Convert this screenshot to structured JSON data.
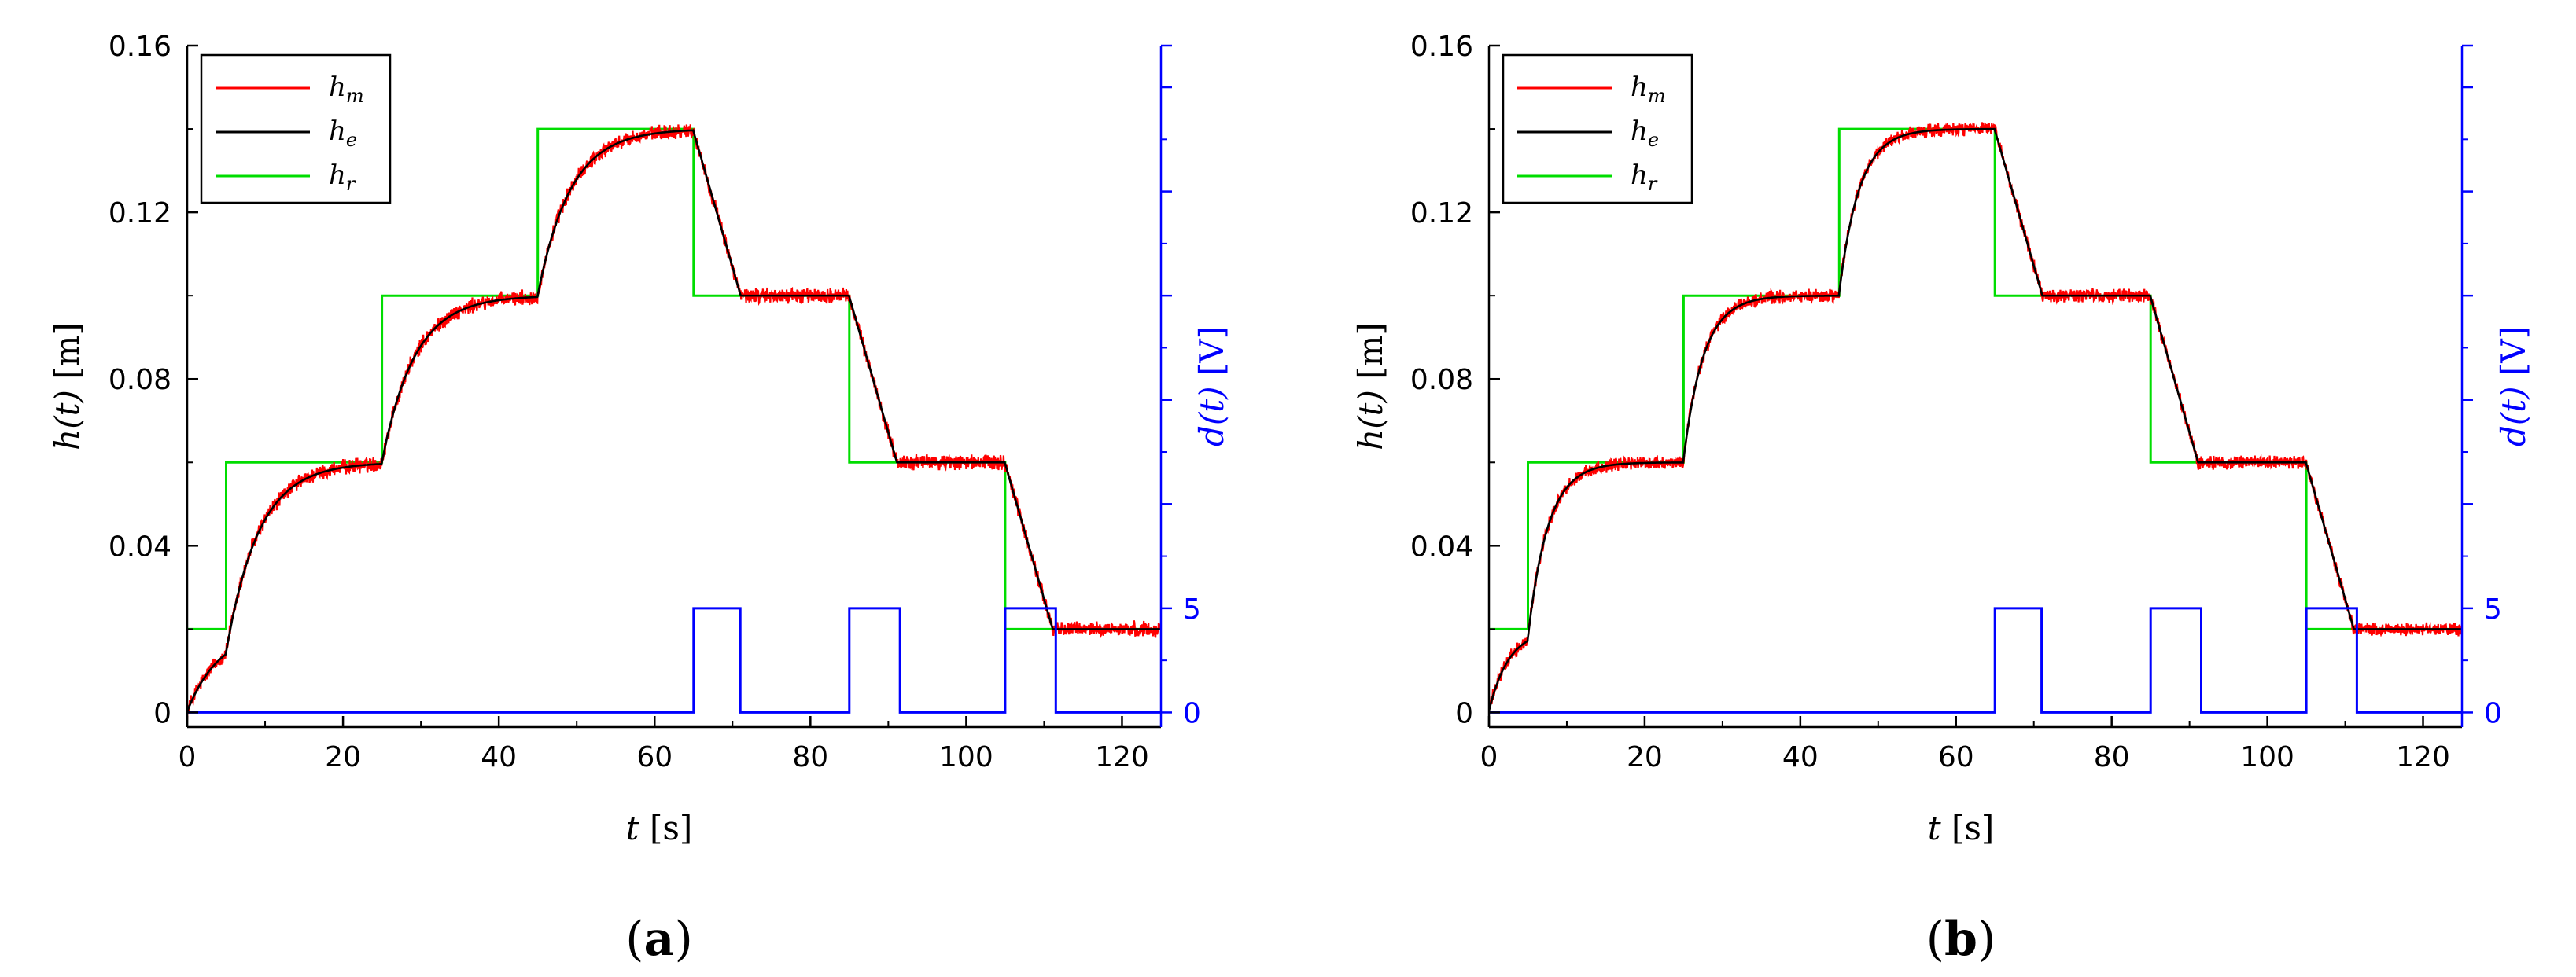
{
  "chart_data": [
    {
      "type": "line",
      "panel_label": "(a)",
      "xlabel": "t [s]",
      "ylabel": "h(t) [m]",
      "ylabel_right": "d(t) [V]",
      "xlim": [
        0,
        125
      ],
      "ylim": [
        -0.0035,
        0.16
      ],
      "ylim_right": [
        -0.7,
        32
      ],
      "xticks": [
        0,
        20,
        40,
        60,
        80,
        100,
        120
      ],
      "xtick_labels": [
        "0",
        "20",
        "40",
        "60",
        "80",
        "100",
        "120"
      ],
      "yticks": [
        0,
        0.04,
        0.08,
        0.12,
        0.16
      ],
      "ytick_labels": [
        "0",
        "0.04",
        "0.08",
        "0.12",
        "0.16"
      ],
      "yticks_right_labeled": [
        0,
        5
      ],
      "ytick_labels_right": [
        "0",
        "5"
      ],
      "yticks_right_minor": [
        10,
        15,
        20,
        25,
        30
      ],
      "legend": [
        "h_m",
        "h_e",
        "h_r"
      ],
      "legend_position": "top-left",
      "colors": {
        "h_m": "#ff0000",
        "h_e": "#000000",
        "h_r": "#00dd00",
        "d": "#0000ff"
      },
      "series": [
        {
          "name": "h_r",
          "kind": "step",
          "x": [
            0,
            5,
            25,
            45,
            65,
            85,
            105,
            125
          ],
          "values": [
            0.02,
            0.06,
            0.1,
            0.14,
            0.1,
            0.06,
            0.02,
            0.02
          ]
        },
        {
          "name": "h_e",
          "kind": "model",
          "rise_tau": 4.2,
          "fall_rate": 0.0065,
          "start": 0.0
        },
        {
          "name": "h_m",
          "kind": "noisy",
          "noise_amplitude": 0.0015
        },
        {
          "name": "d",
          "kind": "step",
          "x": [
            0,
            65,
            71,
            85,
            91.5,
            105,
            111.5,
            125
          ],
          "values": [
            0,
            5,
            0,
            5,
            0,
            5,
            0,
            0
          ]
        }
      ]
    },
    {
      "type": "line",
      "panel_label": "(b)",
      "xlabel": "t [s]",
      "ylabel": "h(t) [m]",
      "ylabel_right": "d(t) [V]",
      "xlim": [
        0,
        125
      ],
      "ylim": [
        -0.0035,
        0.16
      ],
      "ylim_right": [
        -0.7,
        32
      ],
      "xticks": [
        0,
        20,
        40,
        60,
        80,
        100,
        120
      ],
      "xtick_labels": [
        "0",
        "20",
        "40",
        "60",
        "80",
        "100",
        "120"
      ],
      "yticks": [
        0,
        0.04,
        0.08,
        0.12,
        0.16
      ],
      "ytick_labels": [
        "0",
        "0.04",
        "0.08",
        "0.12",
        "0.16"
      ],
      "yticks_right_labeled": [
        0,
        5
      ],
      "ytick_labels_right": [
        "0",
        "5"
      ],
      "yticks_right_minor": [
        10,
        15,
        20,
        25,
        30
      ],
      "legend": [
        "h_m",
        "h_e",
        "h_r"
      ],
      "legend_position": "top-left",
      "colors": {
        "h_m": "#ff0000",
        "h_e": "#000000",
        "h_r": "#00dd00",
        "d": "#0000ff"
      },
      "series": [
        {
          "name": "h_r",
          "kind": "step",
          "x": [
            0,
            5,
            25,
            45,
            65,
            85,
            105,
            125
          ],
          "values": [
            0.02,
            0.06,
            0.1,
            0.14,
            0.1,
            0.06,
            0.02,
            0.02
          ]
        },
        {
          "name": "h_e",
          "kind": "model",
          "rise_tau": 2.6,
          "fall_rate": 0.0065,
          "start": 0.0
        },
        {
          "name": "h_m",
          "kind": "noisy",
          "noise_amplitude": 0.0013
        },
        {
          "name": "d",
          "kind": "step",
          "x": [
            0,
            65,
            71,
            85,
            91.5,
            105,
            111.5,
            125
          ],
          "values": [
            0,
            5,
            0,
            5,
            0,
            5,
            0,
            0
          ]
        }
      ]
    }
  ]
}
